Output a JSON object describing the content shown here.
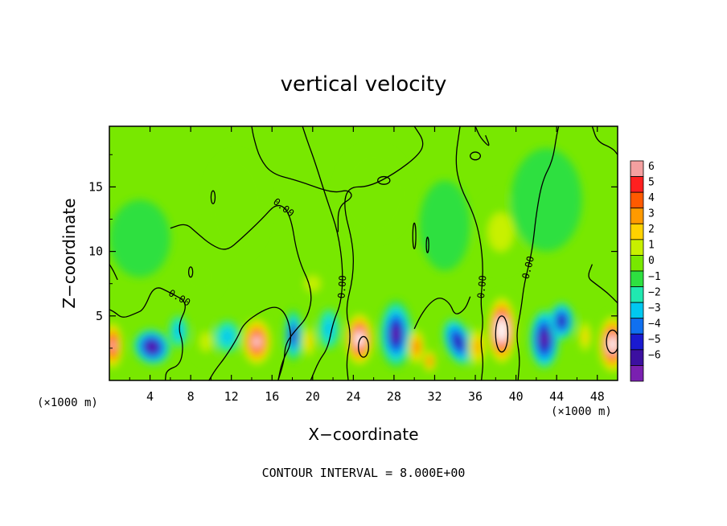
{
  "chart_data": {
    "type": "heatmap",
    "title": "vertical velocity",
    "xlabel": "X−coordinate",
    "ylabel": "Z−coordinate",
    "x_unit_left": "(×1000 m)",
    "x_unit_right": "(×1000 m)",
    "footer": "CONTOUR INTERVAL = 8.000E+00",
    "xlim": [
      0,
      50
    ],
    "ylim": [
      0,
      19.7
    ],
    "x_ticks": [
      4,
      8,
      12,
      16,
      20,
      24,
      28,
      32,
      36,
      40,
      44,
      48
    ],
    "x_tick_labels": [
      "4",
      "8",
      "12",
      "16",
      "20",
      "24",
      "28",
      "32",
      "36",
      "40",
      "44",
      "48"
    ],
    "y_ticks": [
      5,
      10,
      15
    ],
    "y_tick_labels": [
      "5",
      "10",
      "15"
    ],
    "colorbar": {
      "levels": [
        6,
        5,
        4,
        3,
        2,
        1,
        0,
        -1,
        -2,
        -3,
        -4,
        -5,
        -6
      ],
      "labels": [
        "6",
        "5",
        "4",
        "3",
        "2",
        "1",
        "0",
        "−1",
        "−2",
        "−3",
        "−4",
        "−5",
        "−6"
      ],
      "colors": [
        "#f4a0a0",
        "#ff2020",
        "#ff5a00",
        "#ff9a00",
        "#ffd200",
        "#c8f000",
        "#78e800",
        "#2ee040",
        "#20e8b0",
        "#00c8f0",
        "#1070f0",
        "#1a1ad0",
        "#3c10a0",
        "#7a20b0"
      ]
    },
    "background_value": 0.3,
    "cells": [
      {
        "x": 0.3,
        "z": 2.7,
        "sx": 1.1,
        "sz": 2.0,
        "v": 6.5
      },
      {
        "x": 4.2,
        "z": 2.6,
        "sx": 1.8,
        "sz": 1.3,
        "v": -6.0,
        "rot": 30
      },
      {
        "x": 6.8,
        "z": 3.8,
        "sx": 0.9,
        "sz": 1.2,
        "v": -2.0
      },
      {
        "x": 9.5,
        "z": 3.0,
        "sx": 1.2,
        "sz": 1.5,
        "v": 1.5
      },
      {
        "x": 11.6,
        "z": 3.4,
        "sx": 1.2,
        "sz": 1.2,
        "v": -2.0
      },
      {
        "x": 14.5,
        "z": 3.0,
        "sx": 1.6,
        "sz": 2.0,
        "v": 7.0
      },
      {
        "x": 18.1,
        "z": 3.5,
        "sx": 0.9,
        "sz": 2.0,
        "v": -5.5
      },
      {
        "x": 19.6,
        "z": 3.0,
        "sx": 0.8,
        "sz": 1.6,
        "v": 3.0
      },
      {
        "x": 21.6,
        "z": 4.0,
        "sx": 1.0,
        "sz": 1.5,
        "v": -2.0
      },
      {
        "x": 24.6,
        "z": 3.2,
        "sx": 1.5,
        "sz": 2.2,
        "v": 8.0
      },
      {
        "x": 28.2,
        "z": 3.6,
        "sx": 1.6,
        "sz": 2.6,
        "v": -6.5
      },
      {
        "x": 30.2,
        "z": 2.6,
        "sx": 0.9,
        "sz": 1.6,
        "v": 5.0
      },
      {
        "x": 31.5,
        "z": 1.5,
        "sx": 0.7,
        "sz": 1.0,
        "v": 4.5
      },
      {
        "x": 34.3,
        "z": 3.0,
        "sx": 1.3,
        "sz": 1.8,
        "v": -5.0,
        "rot": -20
      },
      {
        "x": 36.2,
        "z": 2.6,
        "sx": 1.0,
        "sz": 1.8,
        "v": 4.0
      },
      {
        "x": 38.6,
        "z": 3.9,
        "sx": 1.5,
        "sz": 2.8,
        "v": 9.0
      },
      {
        "x": 42.8,
        "z": 3.2,
        "sx": 1.4,
        "sz": 2.2,
        "v": -6.0
      },
      {
        "x": 44.5,
        "z": 4.6,
        "sx": 1.2,
        "sz": 1.4,
        "v": -5.0
      },
      {
        "x": 46.8,
        "z": 3.4,
        "sx": 0.8,
        "sz": 1.6,
        "v": 2.5
      },
      {
        "x": 49.5,
        "z": 2.8,
        "sx": 1.5,
        "sz": 2.4,
        "v": 8.0
      },
      {
        "x": 20.0,
        "z": 7.5,
        "sx": 1.5,
        "sz": 1.2,
        "v": 1.3
      },
      {
        "x": 9.0,
        "z": 8.0,
        "sx": 2.0,
        "sz": 1.5,
        "v": 1.0
      },
      {
        "x": 38.5,
        "z": 11.5,
        "sx": 2.5,
        "sz": 3.0,
        "v": 1.6
      },
      {
        "x": 43.0,
        "z": 14.0,
        "sx": 3.5,
        "sz": 4.0,
        "v": -0.4
      },
      {
        "x": 26.0,
        "z": 14.5,
        "sx": 3.5,
        "sz": 3.5,
        "v": 0.9
      },
      {
        "x": 12.5,
        "z": 13.5,
        "sx": 3.0,
        "sz": 4.0,
        "v": 0.9
      },
      {
        "x": 3.0,
        "z": 11.0,
        "sx": 3.0,
        "sz": 3.0,
        "v": -0.2
      },
      {
        "x": 33.0,
        "z": 12.0,
        "sx": 2.5,
        "sz": 3.5,
        "v": -0.3
      }
    ],
    "contours": [
      {
        "label": "0.00",
        "points": [
          [
            5.5,
            0.0
          ],
          [
            5.6,
            0.8
          ],
          [
            7.0,
            1.2
          ],
          [
            7.3,
            2.8
          ],
          [
            6.7,
            4.2
          ],
          [
            7.8,
            6.0
          ],
          [
            6.0,
            6.8
          ],
          [
            4.4,
            7.4
          ],
          [
            3.4,
            5.5
          ],
          [
            2.6,
            5.2
          ],
          [
            1.3,
            4.8
          ],
          [
            0.5,
            5.3
          ],
          [
            0.0,
            5.5
          ]
        ]
      },
      {
        "label": "",
        "points": [
          [
            9.8,
            0.0
          ],
          [
            10.4,
            0.8
          ],
          [
            11.4,
            1.8
          ],
          [
            12.6,
            3.3
          ],
          [
            13.2,
            4.4
          ],
          [
            15.0,
            5.4
          ],
          [
            16.5,
            5.8
          ],
          [
            17.5,
            5.0
          ],
          [
            18.0,
            3.0
          ],
          [
            17.0,
            1.5
          ],
          [
            16.6,
            0.0
          ]
        ]
      },
      {
        "label": "0.00",
        "points": [
          [
            16.6,
            0.0
          ],
          [
            17.2,
            1.5
          ],
          [
            17.3,
            2.8
          ],
          [
            18.2,
            3.8
          ],
          [
            19.6,
            5.0
          ],
          [
            20.0,
            7.0
          ],
          [
            18.5,
            9.5
          ],
          [
            17.8,
            13.0
          ],
          [
            16.5,
            13.8
          ],
          [
            15.0,
            12.5
          ],
          [
            13.0,
            11.0
          ],
          [
            11.5,
            10.0
          ],
          [
            10.0,
            10.5
          ],
          [
            8.5,
            11.5
          ],
          [
            7.5,
            12.2
          ],
          [
            6.0,
            11.8
          ]
        ]
      },
      {
        "label": "0.00",
        "points": [
          [
            19.8,
            0.0
          ],
          [
            20.6,
            1.5
          ],
          [
            21.5,
            2.5
          ],
          [
            22.0,
            4.5
          ],
          [
            22.8,
            6.0
          ],
          [
            23.0,
            8.5
          ],
          [
            22.5,
            11.5
          ],
          [
            21.4,
            14.0
          ],
          [
            20.2,
            17.0
          ],
          [
            19.5,
            18.5
          ],
          [
            19.0,
            19.7
          ]
        ]
      },
      {
        "label": "",
        "points": [
          [
            14.0,
            19.7
          ],
          [
            14.2,
            18.8
          ],
          [
            14.8,
            17.2
          ],
          [
            16.0,
            16.0
          ],
          [
            18.5,
            15.5
          ],
          [
            22.0,
            14.5
          ],
          [
            23.5,
            14.8
          ],
          [
            24.0,
            14.2
          ],
          [
            22.5,
            13.5
          ],
          [
            22.5,
            11.5
          ]
        ]
      },
      {
        "label": "",
        "points": [
          [
            23.5,
            0.0
          ],
          [
            23.3,
            1.5
          ],
          [
            23.8,
            3.5
          ],
          [
            23.2,
            5.5
          ],
          [
            24.0,
            8.0
          ],
          [
            24.0,
            10.5
          ],
          [
            23.0,
            13.5
          ],
          [
            23.5,
            15.0
          ],
          [
            25.5,
            15.0
          ],
          [
            28.0,
            16.0
          ],
          [
            30.5,
            17.5
          ],
          [
            31.0,
            18.5
          ],
          [
            30.0,
            19.7
          ]
        ]
      },
      {
        "label": "0.00",
        "points": [
          [
            36.6,
            0.0
          ],
          [
            36.8,
            1.5
          ],
          [
            36.5,
            3.0
          ],
          [
            36.8,
            4.5
          ],
          [
            36.5,
            6.0
          ],
          [
            36.8,
            8.5
          ],
          [
            36.5,
            11.0
          ],
          [
            35.8,
            13.0
          ],
          [
            34.5,
            15.0
          ],
          [
            34.0,
            17.0
          ],
          [
            34.5,
            19.7
          ]
        ]
      },
      {
        "label": "0.00",
        "points": [
          [
            40.2,
            0.0
          ],
          [
            40.4,
            1.8
          ],
          [
            40.0,
            3.5
          ],
          [
            40.5,
            5.5
          ],
          [
            40.8,
            7.5
          ],
          [
            41.6,
            10.0
          ],
          [
            42.0,
            13.0
          ],
          [
            42.6,
            15.5
          ],
          [
            43.6,
            17.0
          ],
          [
            44.0,
            19.0
          ],
          [
            44.2,
            19.7
          ]
        ]
      },
      {
        "label": "",
        "points": [
          [
            50.0,
            6.0
          ],
          [
            49.0,
            6.8
          ],
          [
            47.8,
            7.5
          ],
          [
            47.0,
            8.0
          ],
          [
            47.5,
            9.0
          ]
        ]
      },
      {
        "label": "",
        "points": [
          [
            36.0,
            19.7
          ],
          [
            36.5,
            18.8
          ],
          [
            37.5,
            18.0
          ],
          [
            37.0,
            19.0
          ]
        ]
      },
      {
        "label": "",
        "points": [
          [
            47.5,
            19.7
          ],
          [
            48.0,
            18.5
          ],
          [
            49.5,
            18.0
          ],
          [
            50.0,
            17.5
          ]
        ]
      },
      {
        "label": "",
        "points": [
          [
            30.0,
            4.0
          ],
          [
            30.6,
            5.0
          ],
          [
            31.5,
            6.0
          ],
          [
            32.5,
            6.5
          ],
          [
            33.5,
            6.0
          ],
          [
            34.0,
            5.0
          ],
          [
            35.0,
            5.5
          ],
          [
            35.5,
            6.5
          ]
        ]
      },
      {
        "label": "",
        "points": [
          [
            0.0,
            9.0
          ],
          [
            0.4,
            8.5
          ],
          [
            0.8,
            7.8
          ]
        ]
      }
    ],
    "closed_contours": [
      {
        "x": 25.0,
        "z": 2.6,
        "rx": 0.5,
        "rz": 0.8
      },
      {
        "x": 38.6,
        "z": 3.6,
        "rx": 0.6,
        "rz": 1.4
      },
      {
        "x": 49.5,
        "z": 3.0,
        "rx": 0.6,
        "rz": 0.9
      },
      {
        "x": 27.0,
        "z": 15.5,
        "rx": 0.6,
        "rz": 0.3
      },
      {
        "x": 36.0,
        "z": 17.4,
        "rx": 0.5,
        "rz": 0.3
      },
      {
        "x": 10.2,
        "z": 14.2,
        "rx": 0.2,
        "rz": 0.5
      },
      {
        "x": 8.0,
        "z": 8.4,
        "rx": 0.2,
        "rz": 0.4
      },
      {
        "x": 30.0,
        "z": 11.2,
        "rx": 0.15,
        "rz": 1.0
      },
      {
        "x": 31.3,
        "z": 10.5,
        "rx": 0.12,
        "rz": 0.6
      }
    ]
  }
}
